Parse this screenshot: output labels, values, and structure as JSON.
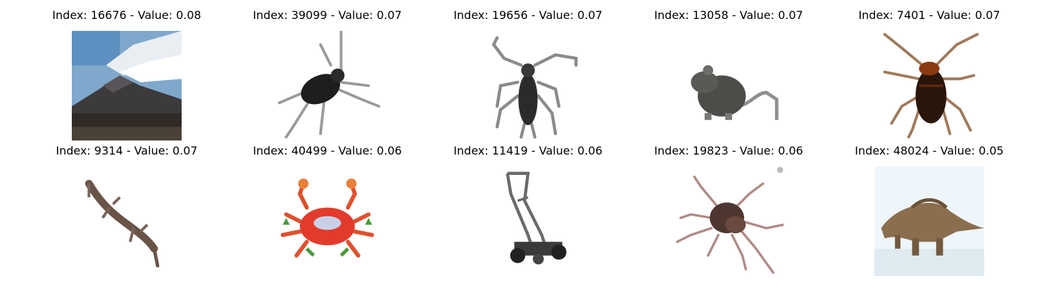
{
  "grid": {
    "items": [
      {
        "title": "Index: 16676 - Value: 0.08",
        "subject": "mountain-landscape-image"
      },
      {
        "title": "Index: 39099 - Value: 0.07",
        "subject": "black-insect-image"
      },
      {
        "title": "Index: 19656 - Value: 0.07",
        "subject": "beetle-image"
      },
      {
        "title": "Index: 13058 - Value: 0.07",
        "subject": "rodent-image"
      },
      {
        "title": "Index: 7401 - Value: 0.07",
        "subject": "cockroach-image"
      },
      {
        "title": "Index: 9314 - Value: 0.07",
        "subject": "lizard-image"
      },
      {
        "title": "Index: 40499 - Value: 0.06",
        "subject": "crab-image"
      },
      {
        "title": "Index: 11419 - Value: 0.06",
        "subject": "lawn-mower-image"
      },
      {
        "title": "Index: 19823 - Value: 0.06",
        "subject": "spider-image"
      },
      {
        "title": "Index: 48024 - Value: 0.05",
        "subject": "dinosaur-image"
      }
    ]
  }
}
